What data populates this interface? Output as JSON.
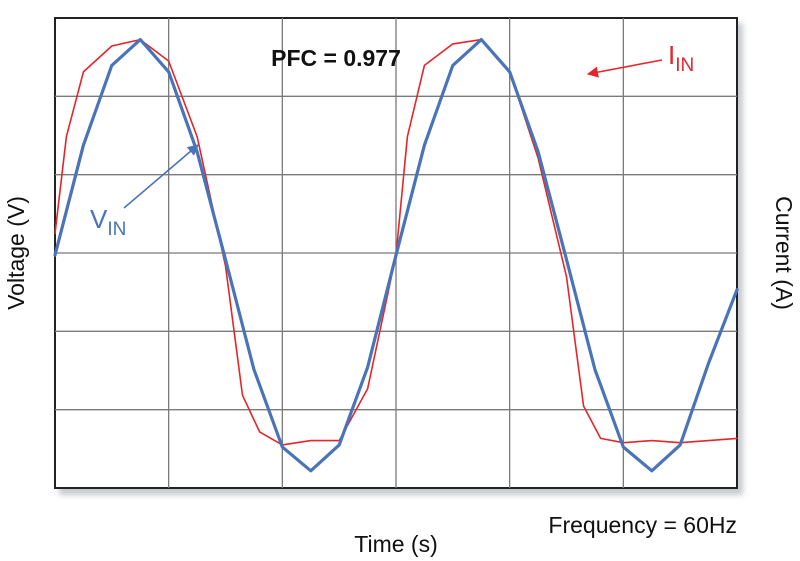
{
  "chart_data": {
    "type": "line",
    "xlabel": "Time (s)",
    "ylabel_left": "Voltage (V)",
    "ylabel_right": "Current (A)",
    "annotation_pfc": "PFC = 0.977",
    "annotation_frequency": "Frequency = 60Hz",
    "grid": true,
    "grid_divisions": {
      "x": 6,
      "y": 6
    },
    "x_unit_note": "time in grid divisions",
    "xlim": [
      0,
      6
    ],
    "ylim": [
      -1.08,
      1.1
    ],
    "series": [
      {
        "name_main": "V",
        "name_sub": "IN",
        "color": "#4a74b8",
        "x": [
          0,
          0.25,
          0.5,
          0.75,
          1.0,
          1.25,
          1.5,
          1.75,
          2.0,
          2.25,
          2.5,
          2.75,
          3.0,
          3.25,
          3.5,
          3.75,
          4.0,
          4.25,
          4.5,
          4.75,
          5.0,
          5.25,
          5.5,
          5.75,
          6.0
        ],
        "y": [
          0.0,
          0.51,
          0.88,
          1.0,
          0.85,
          0.48,
          -0.02,
          -0.53,
          -0.89,
          -1.0,
          -0.88,
          -0.52,
          0.0,
          0.51,
          0.88,
          1.0,
          0.85,
          0.48,
          -0.02,
          -0.53,
          -0.89,
          -1.0,
          -0.88,
          -0.5,
          -0.16
        ]
      },
      {
        "name_main": "I",
        "name_sub": "IN",
        "color": "#e3262b",
        "x": [
          0,
          0.1,
          0.25,
          0.5,
          0.75,
          1.0,
          1.25,
          1.5,
          1.65,
          1.8,
          2.0,
          2.25,
          2.5,
          2.75,
          3.0,
          3.1,
          3.25,
          3.5,
          3.75,
          4.0,
          4.25,
          4.5,
          4.65,
          4.8,
          5.0,
          5.25,
          5.5,
          5.75,
          6.0
        ],
        "y": [
          0.1,
          0.55,
          0.85,
          0.97,
          1.0,
          0.9,
          0.55,
          -0.05,
          -0.65,
          -0.82,
          -0.88,
          -0.86,
          -0.86,
          -0.62,
          0.0,
          0.55,
          0.88,
          0.98,
          1.0,
          0.85,
          0.45,
          -0.1,
          -0.7,
          -0.85,
          -0.87,
          -0.86,
          -0.87,
          -0.86,
          -0.85
        ]
      }
    ]
  }
}
